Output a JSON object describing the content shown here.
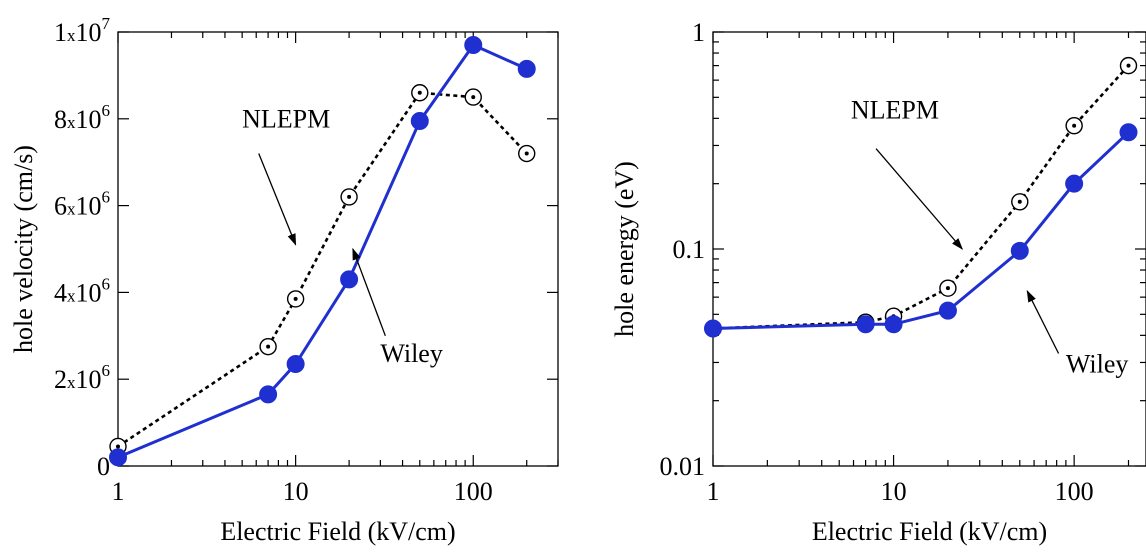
{
  "chart_data": [
    {
      "type": "line",
      "xlabel": "Electric Field (kV/cm)",
      "ylabel": "hole velocity (cm/s)",
      "x_scale": "log",
      "y_scale": "linear",
      "xlim": [
        1,
        300
      ],
      "ylim": [
        0,
        10000000
      ],
      "x_ticks": [
        {
          "value": 1,
          "label": "1"
        },
        {
          "value": 10,
          "label": "10"
        },
        {
          "value": 100,
          "label": "100"
        }
      ],
      "y_ticks": [
        {
          "value": 0,
          "base": "0",
          "exp": ""
        },
        {
          "value": 2000000,
          "base": "2x10",
          "exp": "6"
        },
        {
          "value": 4000000,
          "base": "4x10",
          "exp": "6"
        },
        {
          "value": 6000000,
          "base": "6x10",
          "exp": "6"
        },
        {
          "value": 8000000,
          "base": "8x10",
          "exp": "6"
        },
        {
          "value": 10000000,
          "base": "1x10",
          "exp": "7"
        }
      ],
      "grid": false,
      "series": [
        {
          "name": "NLEPM",
          "style": "dotted",
          "marker": "open-circle",
          "color": "#000000",
          "x": [
            1,
            7,
            10,
            20,
            50,
            100,
            200
          ],
          "y": [
            450000,
            2750000,
            3850000,
            6200000,
            8600000,
            8500000,
            7200000
          ]
        },
        {
          "name": "Wiley",
          "style": "solid",
          "marker": "filled-circle",
          "color": "#1f2fd0",
          "x": [
            1,
            7,
            10,
            20,
            50,
            100,
            200
          ],
          "y": [
            200000,
            1650000,
            2350000,
            4300000,
            7950000,
            9700000,
            9150000
          ]
        }
      ],
      "annotations": [
        {
          "text": "NLEPM",
          "series": 0,
          "label_at": [
            5,
            7800000
          ],
          "arrow_from": [
            6.2,
            7200000
          ],
          "arrow_to": [
            10,
            5100000
          ]
        },
        {
          "text": "Wiley",
          "series": 1,
          "label_at": [
            30,
            2400000
          ],
          "arrow_from": [
            32,
            3000000
          ],
          "arrow_to": [
            21,
            5000000
          ]
        }
      ]
    },
    {
      "type": "line",
      "xlabel": "Electric Field (kV/cm)",
      "ylabel": "hole energy (eV)",
      "x_scale": "log",
      "y_scale": "log",
      "xlim": [
        1,
        250
      ],
      "ylim": [
        0.01,
        1
      ],
      "x_ticks": [
        {
          "value": 1,
          "label": "1"
        },
        {
          "value": 10,
          "label": "10"
        },
        {
          "value": 100,
          "label": "100"
        }
      ],
      "y_ticks": [
        {
          "value": 0.01,
          "label": "0.01"
        },
        {
          "value": 0.1,
          "label": "0.1"
        },
        {
          "value": 1,
          "label": "1"
        }
      ],
      "grid": false,
      "series": [
        {
          "name": "NLEPM",
          "style": "dotted",
          "marker": "open-circle",
          "color": "#000000",
          "x": [
            1,
            7,
            10,
            20,
            50,
            100,
            200
          ],
          "y": [
            0.043,
            0.046,
            0.049,
            0.066,
            0.165,
            0.37,
            0.7
          ]
        },
        {
          "name": "Wiley",
          "style": "solid",
          "marker": "filled-circle",
          "color": "#1f2fd0",
          "x": [
            1,
            7,
            10,
            20,
            50,
            100,
            200
          ],
          "y": [
            0.043,
            0.045,
            0.045,
            0.052,
            0.098,
            0.2,
            0.345
          ]
        }
      ],
      "annotations": [
        {
          "text": "NLEPM",
          "series": 0,
          "label_at": [
            5.8,
            0.4
          ],
          "arrow_from": [
            8,
            0.29
          ],
          "arrow_to": [
            24,
            0.1
          ]
        },
        {
          "text": "Wiley",
          "series": 1,
          "label_at": [
            90,
            0.027
          ],
          "arrow_from": [
            82,
            0.033
          ],
          "arrow_to": [
            55,
            0.064
          ]
        }
      ]
    }
  ]
}
